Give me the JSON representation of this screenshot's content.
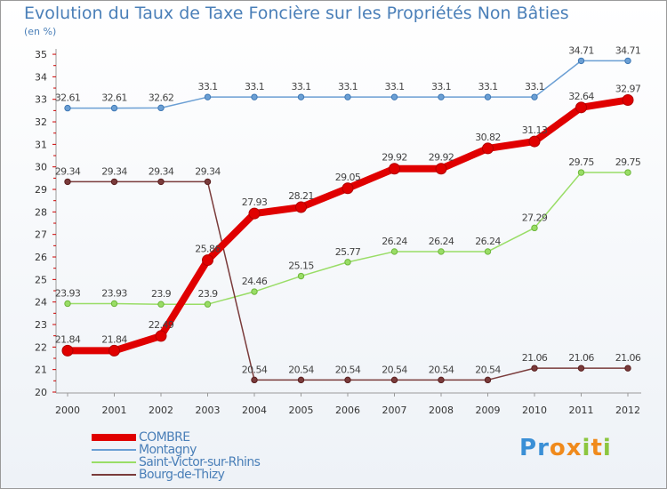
{
  "chart_data": {
    "type": "line",
    "title": "Evolution du Taux de Taxe Foncière sur les Propriétés Non Bâties",
    "ylabel": "(en %)",
    "xlabel": "",
    "categories": [
      "2000",
      "2001",
      "2002",
      "2003",
      "2004",
      "2005",
      "2006",
      "2007",
      "2008",
      "2009",
      "2010",
      "2011",
      "2012"
    ],
    "ylim": [
      20,
      35
    ],
    "yticks": [
      20,
      21,
      22,
      23,
      24,
      25,
      26,
      27,
      28,
      29,
      30,
      31,
      32,
      33,
      34,
      35
    ],
    "grid": false,
    "series": [
      {
        "name": "Montagny",
        "color": "#6b9fd4",
        "values": [
          32.61,
          32.61,
          32.62,
          33.1,
          33.1,
          33.1,
          33.1,
          33.1,
          33.1,
          33.1,
          33.1,
          34.71,
          34.71
        ],
        "labels": [
          "32.61",
          "32.61",
          "32.62",
          "33.1",
          "33.1",
          "33.1",
          "33.1",
          "33.1",
          "33.1",
          "33.1",
          "33.1",
          "34.71",
          "34.71"
        ]
      },
      {
        "name": "Saint-Victor-sur-Rhins",
        "color": "#99dd66",
        "values": [
          23.93,
          23.93,
          23.9,
          23.9,
          24.46,
          25.15,
          25.77,
          26.24,
          26.24,
          26.24,
          27.29,
          29.75,
          29.75
        ],
        "labels": [
          "23.93",
          "23.93",
          "23.9",
          "23.9",
          "24.46",
          "25.15",
          "25.77",
          "26.24",
          "26.24",
          "26.24",
          "27.29",
          "29.75",
          "29.75"
        ]
      },
      {
        "name": "Bourg-de-Thizy",
        "color": "#7a3b3b",
        "values": [
          29.34,
          29.34,
          29.34,
          29.34,
          20.54,
          20.54,
          20.54,
          20.54,
          20.54,
          20.54,
          21.06,
          21.06,
          21.06
        ],
        "labels": [
          "29.34",
          "29.34",
          "29.34",
          "29.34",
          "20.54",
          "20.54",
          "20.54",
          "20.54",
          "20.54",
          "20.54",
          "21.06",
          "21.06",
          "21.06"
        ]
      },
      {
        "name": "COMBRE",
        "color": "#e00000",
        "values": [
          21.84,
          21.84,
          22.49,
          25.86,
          27.93,
          28.21,
          29.05,
          29.92,
          29.92,
          30.82,
          31.13,
          32.64,
          32.97
        ],
        "labels": [
          "21.84",
          "21.84",
          "22.49",
          "25.86",
          "27.93",
          "28.21",
          "29.05",
          "29.92",
          "29.92",
          "30.82",
          "31.13",
          "32.64",
          "32.97"
        ]
      }
    ],
    "legend": [
      "COMBRE",
      "Montagny",
      "Saint-Victor-sur-Rhins",
      "Bourg-de-Thizy"
    ]
  },
  "logo": {
    "text": "Proxiti",
    "letters": [
      "P",
      "r",
      "o",
      "x",
      "i",
      "t",
      "i"
    ],
    "colors": [
      "#3a8fd6",
      "#3a8fd6",
      "#f08a1c",
      "#f08a1c",
      "#8cc63f",
      "#f08a1c",
      "#8cc63f"
    ]
  }
}
